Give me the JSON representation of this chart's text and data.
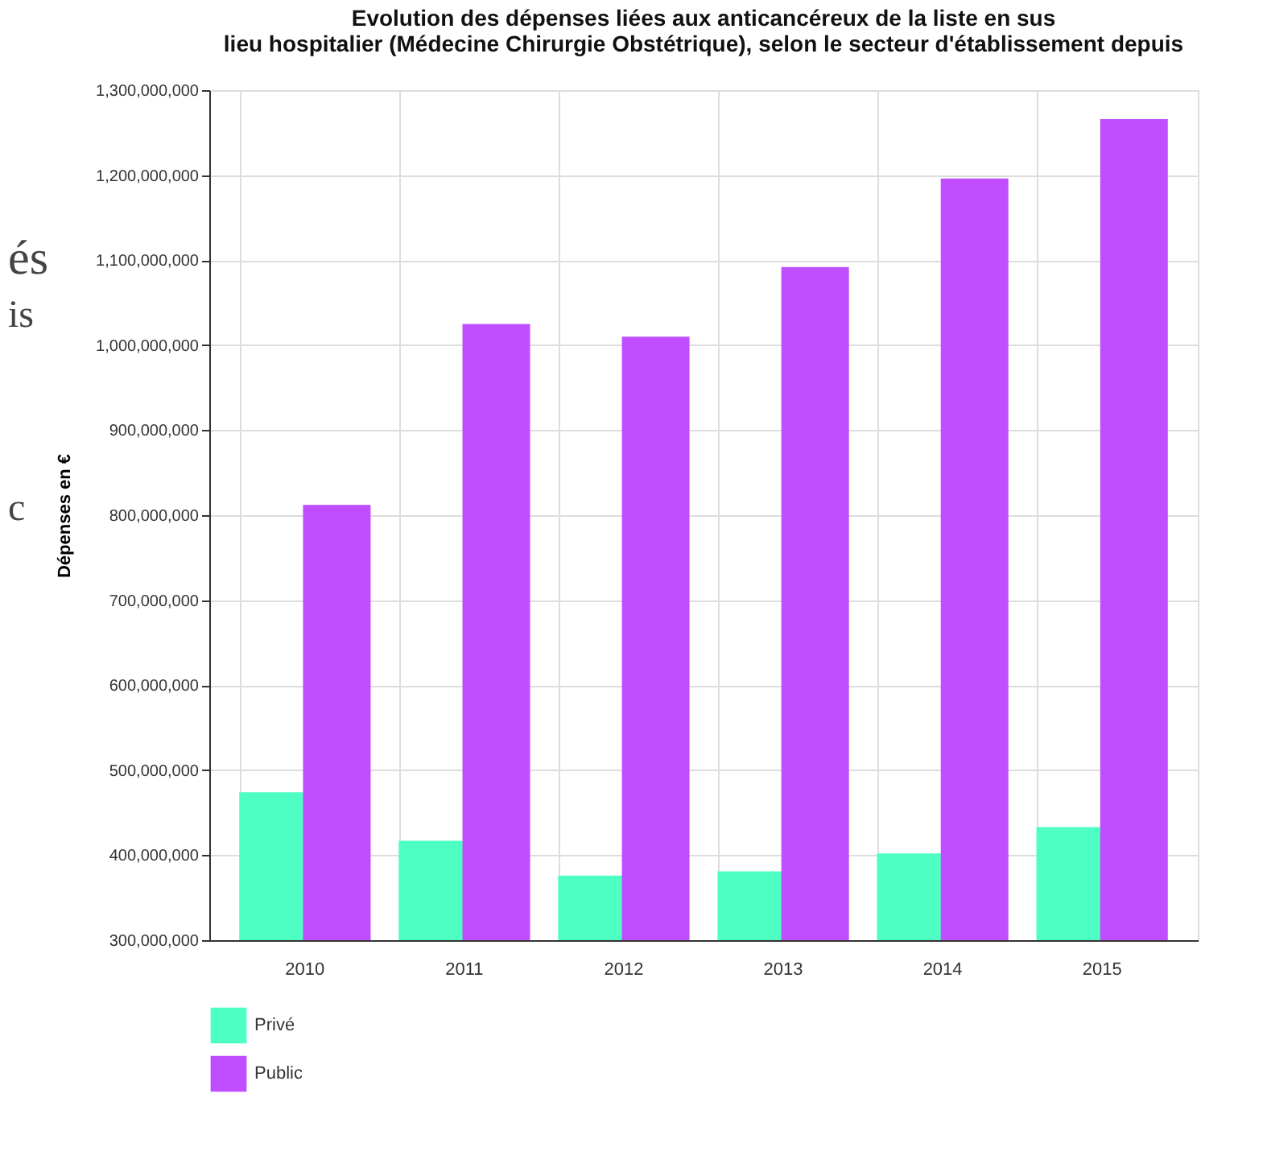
{
  "chart_data": {
    "type": "bar",
    "title": [
      "Evolution des dépenses liées aux anticancéreux de la liste en sus",
      "lieu hospitalier (Médecine Chirurgie Obstétrique), selon le secteur d'établissement depuis"
    ],
    "ylabel": "Dépenses en €",
    "categories": [
      "2010",
      "2011",
      "2012",
      "2013",
      "2014",
      "2015"
    ],
    "series": [
      {
        "name": "Privé",
        "color": "#4dffc3",
        "values": [
          474000000,
          417000000,
          376000000,
          381000000,
          402000000,
          433000000
        ]
      },
      {
        "name": "Public",
        "color": "#c04dff",
        "values": [
          812000000,
          1025000000,
          1010000000,
          1092000000,
          1196000000,
          1266000000
        ]
      }
    ],
    "ylim": [
      300000000,
      1300000000
    ],
    "yticks": [
      {
        "value": 300000000,
        "label": "300,000,000"
      },
      {
        "value": 400000000,
        "label": "400,000,000"
      },
      {
        "value": 500000000,
        "label": "500,000,000"
      },
      {
        "value": 600000000,
        "label": "600,000,000"
      },
      {
        "value": 700000000,
        "label": "700,000,000"
      },
      {
        "value": 800000000,
        "label": "800,000,000"
      },
      {
        "value": 900000000,
        "label": "900,000,000"
      },
      {
        "value": 1000000000,
        "label": "1,000,000,000"
      },
      {
        "value": 1100000000,
        "label": "1,100,000,000"
      },
      {
        "value": 1200000000,
        "label": "1,200,000,000"
      },
      {
        "value": 1300000000,
        "label": "1,300,000,000"
      }
    ],
    "grid": true,
    "legend": "bottom left",
    "annotations": [
      "és",
      "is",
      "c"
    ]
  }
}
